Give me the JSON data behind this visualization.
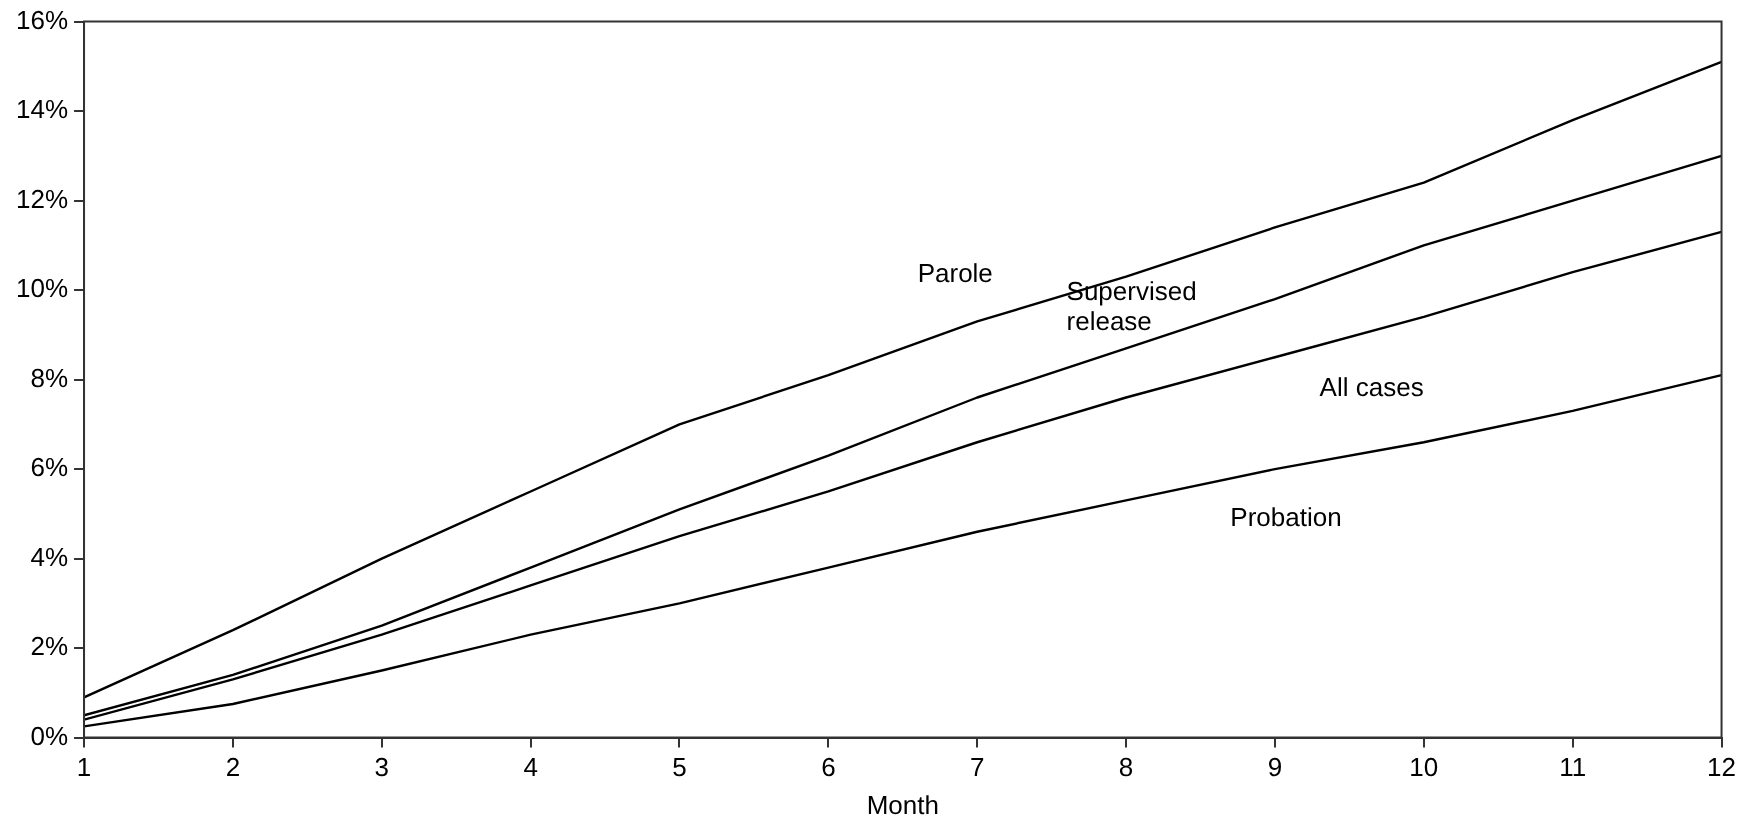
{
  "chart_data": {
    "type": "line",
    "xlabel": "Month",
    "x": [
      1,
      2,
      3,
      4,
      5,
      6,
      7,
      8,
      9,
      10,
      11,
      12
    ],
    "xlim": [
      1,
      12
    ],
    "xticks": [
      1,
      2,
      3,
      4,
      5,
      6,
      7,
      8,
      9,
      10,
      11,
      12
    ],
    "ylim": [
      0,
      16
    ],
    "yticks": [
      {
        "value": 0,
        "label": "0%"
      },
      {
        "value": 2,
        "label": "2%"
      },
      {
        "value": 4,
        "label": "4%"
      },
      {
        "value": 6,
        "label": "6%"
      },
      {
        "value": 8,
        "label": "8%"
      },
      {
        "value": 10,
        "label": "10%"
      },
      {
        "value": 12,
        "label": "12%"
      },
      {
        "value": 14,
        "label": "14%"
      },
      {
        "value": 16,
        "label": "16%"
      }
    ],
    "series": [
      {
        "name": "Parole",
        "color": "#000000",
        "values": [
          0.9,
          2.4,
          4.0,
          5.5,
          7.0,
          8.1,
          9.3,
          10.3,
          11.4,
          12.4,
          13.8,
          15.1
        ]
      },
      {
        "name": "Supervised\nrelease",
        "color": "#000000",
        "values": [
          0.5,
          1.4,
          2.5,
          3.8,
          5.1,
          6.3,
          7.6,
          8.7,
          9.8,
          11.0,
          12.0,
          13.0
        ]
      },
      {
        "name": "All cases",
        "color": "#000000",
        "values": [
          0.4,
          1.3,
          2.3,
          3.4,
          4.5,
          5.5,
          6.6,
          7.6,
          8.5,
          9.4,
          10.4,
          11.3
        ]
      },
      {
        "name": "Probation",
        "color": "#000000",
        "values": [
          0.25,
          0.75,
          1.5,
          2.3,
          3.0,
          3.8,
          4.6,
          5.3,
          6.0,
          6.6,
          7.3,
          8.1
        ]
      }
    ],
    "grid": false,
    "legend": false,
    "marker": "none",
    "line_style": "solid"
  }
}
